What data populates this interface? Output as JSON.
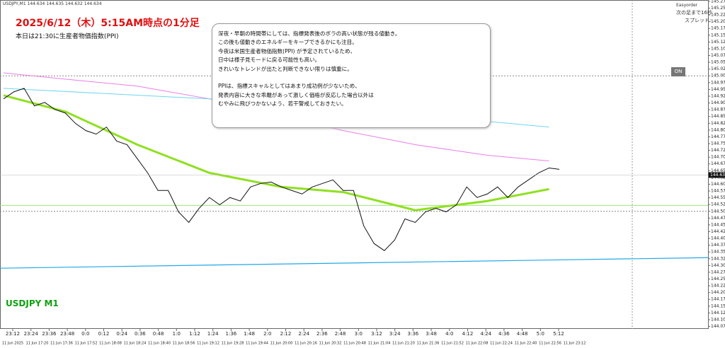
{
  "header": {
    "symbol_info": "USDJPY,M1 144.634 144.635 144.632 144.634",
    "title": "2025/6/12（木）5:15AM時点の1分足",
    "subtitle": "本日は21:30に生産者物価指数(PPI)",
    "watermark": "USDJPY M1"
  },
  "panel": {
    "name": "Easyorder",
    "next_bar": "次の足まで16秒",
    "spread": "スプレッド:",
    "button": "ON"
  },
  "note": {
    "lines": [
      "深夜・早朝の時間帯にしては、指標発表後のボラの高い状態が残る値動き。",
      "この後も値動きのエネルギーをキープできるかにも注目。",
      "今夜は米国生産者物価指数(PPI) が予定されているため、",
      "日中は様子見モードに戻る可能性も高い。",
      "きれいなトレンドが出たと判断できない限りは慎重に。",
      "",
      "PPIは、指標スキャルとしてはあまり成功例が少ないため、",
      "発表内容に大きな乖離があって激しく価格が反応した場合以外は",
      "むやみに飛びつかないよう、若干警戒しておきたい。"
    ]
  },
  "chart_data": {
    "type": "line",
    "ylim": [
      144.066,
      145.28
    ],
    "yticks": [
      144.075,
      {
        "value": 144.1,
        "label": "144.100"
      },
      144.125,
      {
        "value": 144.15,
        "label": "144.150"
      },
      144.175,
      {
        "value": 144.2,
        "label": "144.200"
      },
      144.225,
      {
        "value": 144.25,
        "label": "144.250"
      },
      144.275,
      {
        "value": 144.3,
        "label": "144.300"
      },
      144.325,
      {
        "value": 144.35,
        "label": "144.350"
      },
      144.375,
      {
        "value": 144.4,
        "label": "144.400"
      },
      144.425,
      {
        "value": 144.45,
        "label": "144.450"
      },
      144.475,
      {
        "value": 144.5,
        "label": "144.500"
      },
      144.525,
      {
        "value": 144.55,
        "label": "144.550"
      },
      144.575,
      {
        "value": 144.6,
        "label": "144.600"
      },
      144.625,
      {
        "value": 144.65,
        "label": "144.650"
      },
      144.675,
      {
        "value": 144.7,
        "label": "144.700"
      },
      144.725,
      {
        "value": 144.75,
        "label": "144.750"
      },
      144.775,
      {
        "value": 144.8,
        "label": "144.800"
      },
      144.825,
      {
        "value": 144.85,
        "label": "144.850"
      },
      144.875,
      {
        "value": 144.9,
        "label": "144.900"
      },
      144.925,
      {
        "value": 144.95,
        "label": "144.950"
      },
      144.975,
      {
        "value": 145,
        "label": "145.000"
      },
      145.025,
      {
        "value": 145.05,
        "label": "145.050"
      },
      145.075,
      {
        "value": 145.1,
        "label": "145.100"
      },
      145.125,
      {
        "value": 145.15,
        "label": "145.150"
      },
      145.175,
      {
        "value": 145.2,
        "label": "145.200"
      },
      145.225,
      {
        "value": 145.25,
        "label": "145.250"
      },
      145.275
    ],
    "x_labels_time": [
      "23:12",
      "23:24",
      "23:36",
      "23:48",
      "0:0",
      "0:12",
      "0:24",
      "0:36",
      "0:48",
      "1:0",
      "1:12",
      "1:24",
      "1:36",
      "1:48",
      "2:0",
      "2:12",
      "2:24",
      "2:36",
      "2:48",
      "3:0",
      "3:12",
      "3:24",
      "3:36",
      "3:48",
      "4:0",
      "4:12",
      "4:24",
      "4:36",
      "4:48",
      "5:0",
      "5:12"
    ],
    "x_labels_date": [
      "11 Jun 2025",
      "11 Jun 17:20",
      "11 Jun 17:36",
      "11 Jun 17:52",
      "11 Jun 18:08",
      "11 Jun 18:24",
      "11 Jun 18:40",
      "11 Jun 18:56",
      "11 Jun 19:12",
      "11 Jun 19:28",
      "11 Jun 19:44",
      "11 Jun 20:00",
      "11 Jun 20:16",
      "11 Jun 20:32",
      "11 Jun 20:48",
      "11 Jun 21:04",
      "11 Jun 21:20",
      "11 Jun 21:36",
      "11 Jun 21:52",
      "11 Jun 22:08",
      "11 Jun 22:24",
      "11 Jun 22:40",
      "11 Jun 22:56",
      "11 Jun 23:12"
    ],
    "price": {
      "color": "#111111",
      "values": [
        144.915,
        144.941,
        144.954,
        144.889,
        144.902,
        144.876,
        144.863,
        144.824,
        144.798,
        144.785,
        144.811,
        144.759,
        144.746,
        144.694,
        144.642,
        144.577,
        144.577,
        144.498,
        144.459,
        144.511,
        144.551,
        144.524,
        144.551,
        144.538,
        144.59,
        144.603,
        144.608,
        144.59,
        144.577,
        144.564,
        144.59,
        144.603,
        144.616,
        144.577,
        144.577,
        144.446,
        144.381,
        144.355,
        144.394,
        144.472,
        144.459,
        144.498,
        144.511,
        144.498,
        144.524,
        144.59,
        144.551,
        144.564,
        144.59,
        144.551,
        144.59,
        144.616,
        144.642,
        144.66,
        144.655
      ]
    },
    "series": [
      {
        "color": "#8fe020",
        "width": 3,
        "x": [
          0,
          6,
          13,
          20,
          27,
          33,
          40,
          47,
          53
        ],
        "values": [
          144.928,
          144.868,
          144.746,
          144.642,
          144.59,
          144.571,
          144.504,
          144.538,
          144.582
        ]
      },
      {
        "color": "#e87ee8",
        "width": 1,
        "x": [
          0,
          6,
          13,
          20,
          27,
          33,
          40,
          47,
          53
        ],
        "values": [
          145.011,
          144.988,
          144.962,
          144.915,
          144.85,
          144.798,
          144.746,
          144.707,
          144.686
        ]
      },
      {
        "color": "#6cd6f0",
        "width": 1,
        "x": [
          0,
          20,
          33,
          47,
          53
        ],
        "values": [
          144.954,
          144.915,
          144.876,
          144.832,
          144.811
        ]
      }
    ],
    "trendline": {
      "color": "#20a8e8",
      "values": [
        144.29,
        144.329
      ]
    },
    "hlines": [
      {
        "value": 145,
        "color": "#888888"
      },
      {
        "value": 144.5,
        "color": "#888888"
      },
      {
        "value": 144.522,
        "color": "#9be870"
      }
    ],
    "last_price": 144.634
  }
}
